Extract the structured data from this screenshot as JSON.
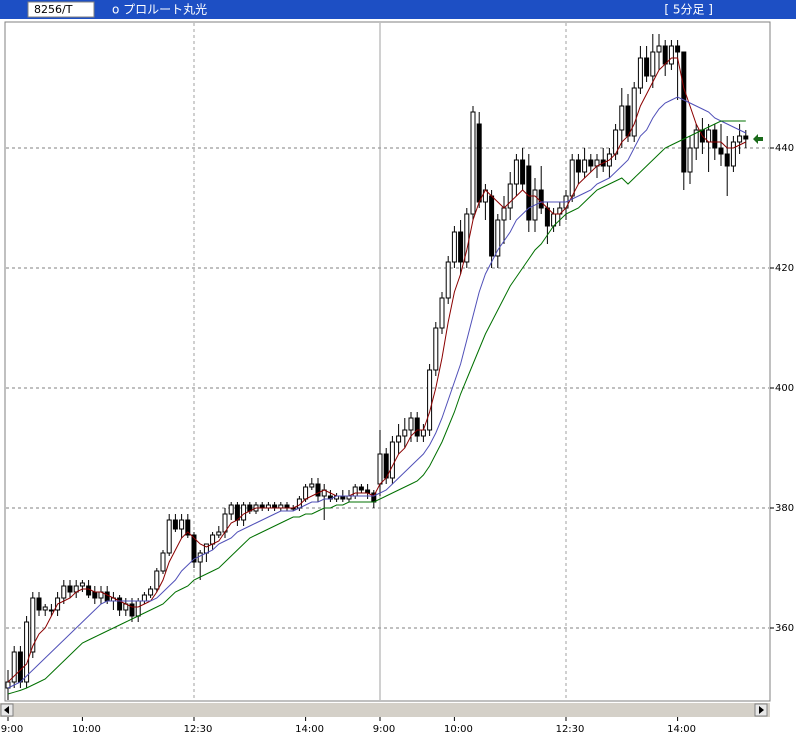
{
  "header": {
    "code": "8256/T",
    "name": "o プロルート丸光",
    "period": "[ 5分足 ]"
  },
  "chart_data": {
    "type": "candlestick",
    "categories": [
      "9:00",
      null,
      null,
      null,
      null,
      null,
      null,
      null,
      null,
      null,
      null,
      null,
      "10:00",
      null,
      null,
      null,
      null,
      null,
      null,
      null,
      null,
      null,
      null,
      null,
      null,
      null,
      null,
      null,
      null,
      null,
      "12:30",
      null,
      null,
      null,
      null,
      null,
      null,
      null,
      null,
      null,
      null,
      null,
      null,
      null,
      null,
      null,
      null,
      null,
      "14:00",
      null,
      null,
      null,
      null,
      null,
      null,
      null,
      null,
      null,
      null,
      null,
      "9:00",
      null,
      null,
      null,
      null,
      null,
      null,
      null,
      null,
      null,
      null,
      null,
      "10:00",
      null,
      null,
      null,
      null,
      null,
      null,
      null,
      null,
      null,
      null,
      null,
      null,
      null,
      null,
      null,
      null,
      null,
      "12:30",
      null,
      null,
      null,
      null,
      null,
      null,
      null,
      null,
      null,
      null,
      null,
      null,
      null,
      null,
      null,
      null,
      null,
      "14:00",
      null,
      null,
      null,
      null,
      null,
      null,
      null,
      null,
      null,
      null,
      null
    ],
    "open": [
      350,
      351,
      356,
      351,
      356,
      365,
      363,
      363,
      363,
      365,
      367,
      366,
      367,
      367,
      366,
      365,
      366,
      364.5,
      365,
      363,
      364,
      362,
      364.5,
      365.5,
      366.5,
      369.5,
      372.5,
      378,
      376.5,
      378,
      375.5,
      371,
      372.5,
      374,
      375.5,
      376,
      379,
      380.5,
      378,
      380.5,
      379.5,
      380.5,
      380,
      380.5,
      380,
      380.5,
      380,
      380,
      381.5,
      383.5,
      384,
      382,
      382,
      381.5,
      382,
      381.5,
      382,
      383.5,
      383,
      382.5,
      384,
      389,
      385,
      391,
      392,
      393,
      395,
      392,
      393,
      403,
      410,
      415,
      421,
      426,
      421,
      429,
      444,
      431,
      432,
      422,
      428,
      430,
      434,
      438,
      437,
      428,
      433,
      430,
      427,
      429,
      430,
      432,
      438,
      436,
      438,
      437,
      438,
      437,
      439,
      443,
      447,
      442,
      450,
      455,
      452,
      456,
      457,
      454,
      457,
      456,
      436,
      440,
      443,
      441,
      443,
      440,
      439,
      437,
      441,
      442
    ],
    "high": [
      353,
      357,
      357,
      362,
      366,
      366,
      364,
      364,
      366,
      368,
      368,
      368,
      368,
      368,
      367,
      367,
      367,
      366,
      365.5,
      365,
      365,
      365,
      366,
      367,
      370,
      373,
      379,
      379,
      379,
      379,
      376,
      373,
      374,
      376,
      377,
      380,
      381,
      381,
      381,
      381,
      381,
      381,
      381,
      381,
      381,
      381,
      380.5,
      382,
      384,
      385,
      385,
      384,
      383,
      382.5,
      383,
      383,
      384,
      384,
      384,
      383,
      393,
      390,
      392,
      394,
      395,
      396,
      396,
      394,
      404,
      411,
      416,
      422,
      427,
      428,
      430,
      447,
      446,
      434,
      433,
      429,
      432,
      436,
      439,
      440,
      439,
      435,
      437,
      431,
      430,
      431,
      433,
      439,
      439,
      440,
      439,
      439,
      440,
      440,
      444,
      450,
      449,
      451,
      457,
      457,
      459,
      459,
      458,
      458,
      458,
      456,
      442,
      444,
      445,
      444,
      444,
      444,
      442,
      442,
      444,
      443
    ],
    "low": [
      348,
      350,
      350,
      350,
      355,
      362,
      362,
      362,
      362,
      364,
      365,
      365,
      366,
      365,
      364,
      364,
      364,
      363,
      362,
      362,
      361,
      361,
      364,
      365,
      366,
      369,
      372,
      376,
      375,
      375,
      370,
      368,
      371,
      373,
      375,
      375,
      378,
      377,
      377,
      379,
      379,
      379.5,
      379.5,
      379.5,
      379.5,
      379.5,
      379.5,
      379.5,
      381,
      383,
      381,
      378,
      381,
      381,
      381,
      381,
      381.5,
      382.5,
      381.5,
      380,
      382,
      384,
      384,
      389,
      390,
      391,
      391,
      391,
      392,
      402,
      409,
      414,
      420,
      419,
      420,
      428,
      430,
      428,
      420,
      420,
      424,
      428,
      432,
      433,
      426,
      426,
      429,
      424,
      426,
      427,
      428,
      431,
      434,
      435,
      436,
      435,
      436,
      435,
      438,
      440,
      441,
      441,
      449,
      451,
      450,
      453,
      452,
      453,
      448,
      433,
      434,
      438,
      439,
      436,
      438,
      437,
      432,
      436,
      439,
      440
    ],
    "close": [
      351,
      356,
      351,
      361,
      365,
      363,
      363.5,
      363,
      365,
      367,
      366,
      367,
      367.5,
      365.5,
      365,
      366,
      364.5,
      365,
      363,
      364,
      362,
      364.5,
      365.5,
      366.5,
      369.5,
      372.5,
      378,
      376.5,
      378,
      375.5,
      371,
      372.5,
      374,
      375.5,
      376,
      379,
      380.5,
      378,
      380.5,
      379.5,
      380.5,
      380,
      380.5,
      380,
      380.5,
      380,
      380,
      381.5,
      383.5,
      384,
      382,
      383,
      381.5,
      382,
      381.5,
      382,
      383.5,
      383,
      382.5,
      381,
      389,
      385,
      391,
      392,
      393,
      395,
      392,
      393,
      403,
      410,
      415,
      421,
      426,
      421,
      429,
      446,
      431,
      433,
      422,
      428,
      430,
      434,
      438,
      434,
      428,
      433,
      430,
      427,
      429,
      430,
      432,
      438,
      436,
      438,
      437,
      438,
      437,
      439,
      443,
      447,
      442,
      450,
      455,
      452,
      456,
      457,
      454,
      457,
      456,
      436,
      440,
      443,
      441,
      443,
      440,
      439,
      437,
      441,
      442,
      441.5
    ],
    "moving_averages": [
      {
        "color": "#8b0000",
        "values": [
          351,
          352,
          353,
          354,
          357,
          359,
          360,
          362,
          364,
          364.5,
          365,
          366,
          366.5,
          366.5,
          366,
          366,
          365.5,
          365,
          364.5,
          364,
          363.5,
          363.5,
          364,
          364.5,
          366,
          368,
          371,
          373,
          375,
          376,
          375,
          374,
          373.5,
          374,
          374.5,
          376,
          377.5,
          378,
          379,
          379.5,
          380,
          380,
          380,
          380,
          380,
          380,
          380,
          380.5,
          381.5,
          382,
          382.5,
          383,
          382.5,
          382,
          382,
          382,
          382.5,
          382.5,
          382.5,
          382,
          384,
          385,
          387,
          389,
          390,
          392,
          393,
          393,
          396,
          400,
          405,
          411,
          416,
          419,
          423,
          428,
          431,
          433,
          432,
          431,
          430,
          431,
          432,
          433,
          432,
          432,
          431,
          430,
          429,
          429,
          430,
          432,
          434,
          435,
          436,
          437,
          437.5,
          438,
          439,
          441,
          442,
          444,
          447,
          449,
          451,
          453,
          454,
          455,
          455,
          450,
          447,
          444,
          442,
          441,
          441,
          441,
          440,
          440,
          440.5,
          441
        ]
      },
      {
        "color": "#5050b8",
        "values": [
          350,
          350.5,
          351,
          352,
          353,
          354,
          355,
          356,
          357,
          358,
          359,
          360,
          361,
          362,
          363,
          364,
          364.5,
          364.5,
          364.5,
          364.5,
          364.5,
          364.5,
          364.5,
          364.5,
          365,
          366,
          367,
          368,
          369.5,
          370.5,
          371.5,
          372,
          372.5,
          373,
          374,
          374.5,
          375,
          376,
          376.5,
          377,
          377.5,
          378,
          378.5,
          379,
          379.5,
          379.5,
          379.5,
          380,
          380.5,
          381,
          381,
          381.5,
          381.5,
          382,
          382,
          382,
          382,
          382,
          382,
          382,
          382.5,
          383,
          384,
          385,
          386,
          387,
          388,
          389,
          390.5,
          392.5,
          395,
          398,
          401,
          404,
          408,
          412,
          416,
          419,
          421,
          423,
          424.5,
          426,
          428,
          429,
          430,
          430.5,
          431,
          431,
          431,
          431,
          431,
          431.5,
          432,
          432.5,
          433,
          434,
          434.5,
          435,
          436,
          437,
          438,
          440,
          442,
          443,
          445,
          446.5,
          447.5,
          448,
          448.5,
          448,
          447.5,
          447,
          446.5,
          446,
          445,
          444.5,
          444,
          443.5,
          443,
          442.5
        ]
      },
      {
        "color": "#007000",
        "values": [
          349,
          349.3,
          349.6,
          350,
          350.5,
          351,
          351.5,
          352.5,
          353.5,
          354.5,
          355.5,
          356.5,
          357.5,
          358,
          358.5,
          359,
          359.5,
          360,
          360.5,
          361,
          361.5,
          362,
          362.5,
          363,
          363.5,
          364,
          365,
          366,
          366.5,
          367,
          368,
          368.5,
          369,
          369.5,
          370,
          371,
          372,
          373,
          374,
          375,
          375.5,
          376,
          376.5,
          377,
          377.5,
          378,
          378.5,
          378.5,
          379,
          379,
          379.5,
          380,
          380,
          380.5,
          380.5,
          381,
          381,
          381,
          381,
          381,
          381.5,
          382,
          382.5,
          383,
          383.5,
          384,
          384.5,
          385.5,
          387,
          389,
          391,
          393.5,
          396,
          399,
          401.5,
          404,
          406.5,
          409,
          411,
          413,
          415,
          417,
          418.5,
          420,
          421.5,
          423,
          424,
          425.5,
          427,
          428,
          429,
          429.5,
          430,
          431,
          432,
          433,
          433.5,
          434,
          434.5,
          435,
          434,
          435,
          436,
          437,
          438,
          439,
          440,
          440.5,
          441,
          441.5,
          442,
          442.5,
          443,
          443.5,
          444,
          444.5,
          444.5,
          444.5,
          444.5,
          444.5
        ]
      }
    ],
    "ylim": [
      348,
      461
    ],
    "yticks": [
      360,
      380,
      400,
      420,
      440
    ],
    "grid": true
  }
}
